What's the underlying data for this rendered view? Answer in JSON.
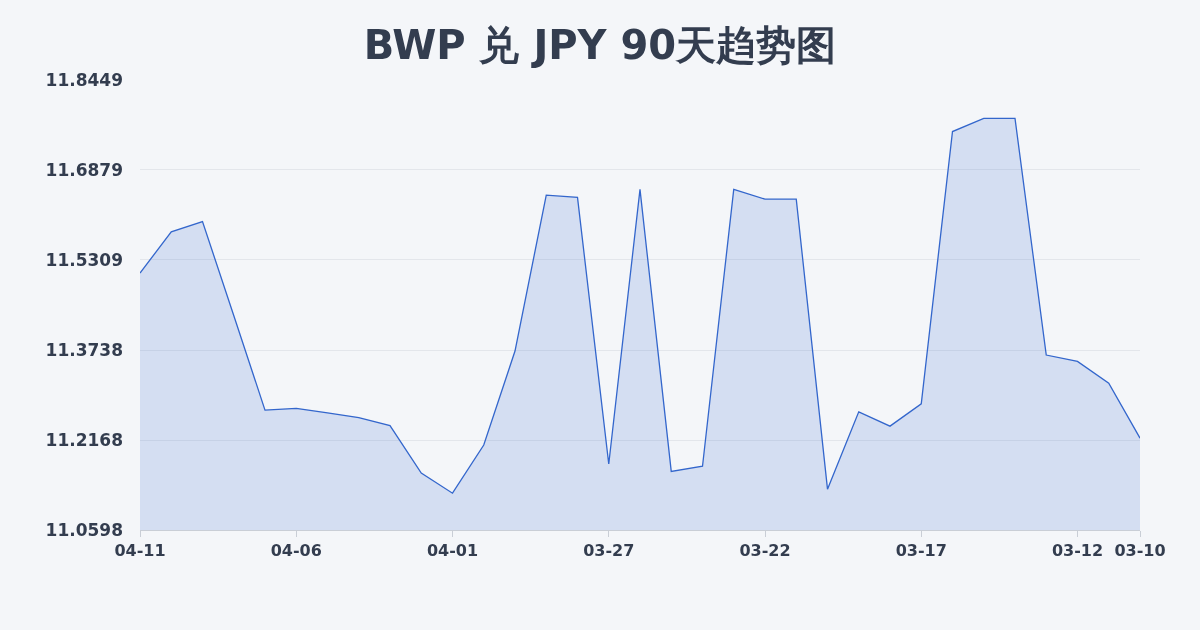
{
  "chart_data": {
    "type": "area",
    "title": "BWP 兑 JPY 90天趋势图",
    "categories": [
      "04-11",
      null,
      null,
      null,
      null,
      "04-06",
      null,
      null,
      null,
      null,
      "04-01",
      null,
      null,
      null,
      null,
      "03-27",
      null,
      null,
      null,
      null,
      "03-22",
      null,
      null,
      null,
      null,
      "03-17",
      null,
      null,
      null,
      null,
      "03-12",
      null,
      "03-10"
    ],
    "series": [
      {
        "color": "#3366cc",
        "values": [
          11.508,
          11.58,
          11.598,
          11.434,
          11.269,
          11.272,
          11.264,
          11.256,
          11.242,
          11.159,
          11.124,
          11.208,
          11.372,
          11.644,
          11.64,
          11.175,
          11.654,
          11.162,
          11.171,
          11.654,
          11.637,
          11.637,
          11.131,
          11.266,
          11.241,
          11.28,
          11.755,
          11.778,
          11.778,
          11.365,
          11.354,
          11.316,
          11.22
        ]
      }
    ],
    "ylim": [
      11.0598,
      11.8449
    ],
    "yticks": [
      11.0598,
      11.2168,
      11.3738,
      11.5309,
      11.6879,
      11.8449
    ],
    "grid": "y"
  }
}
